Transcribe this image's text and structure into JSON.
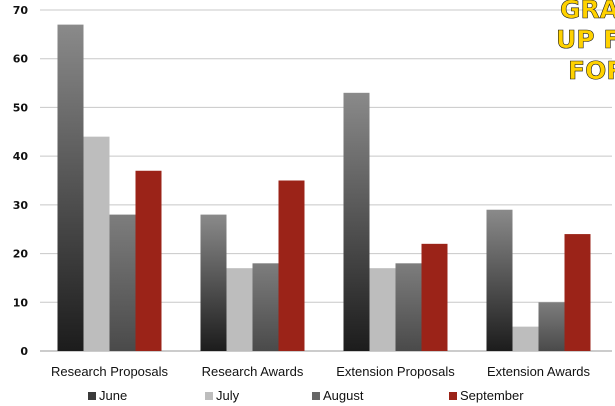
{
  "chart_data": {
    "type": "bar",
    "title_lines": [
      "GRA",
      "UP F",
      "FOR"
    ],
    "categories": [
      "Research Proposals",
      "Research Awards",
      "Extension Proposals",
      "Extension Awards"
    ],
    "series": [
      {
        "name": "June",
        "values": [
          67,
          28,
          53,
          29
        ],
        "color": "#3a3a3a"
      },
      {
        "name": "July",
        "values": [
          44,
          17,
          17,
          5
        ],
        "color": "#bdbdbd"
      },
      {
        "name": "August",
        "values": [
          28,
          18,
          18,
          10
        ],
        "color": "#666666"
      },
      {
        "name": "September",
        "values": [
          37,
          35,
          22,
          24
        ],
        "color": "#9b2318"
      }
    ],
    "ylim": [
      0,
      70
    ],
    "yticks": [
      0,
      10,
      20,
      30,
      40,
      50,
      60,
      70
    ],
    "grid": true,
    "legend": "bottom",
    "title_color": "#ffd200"
  }
}
